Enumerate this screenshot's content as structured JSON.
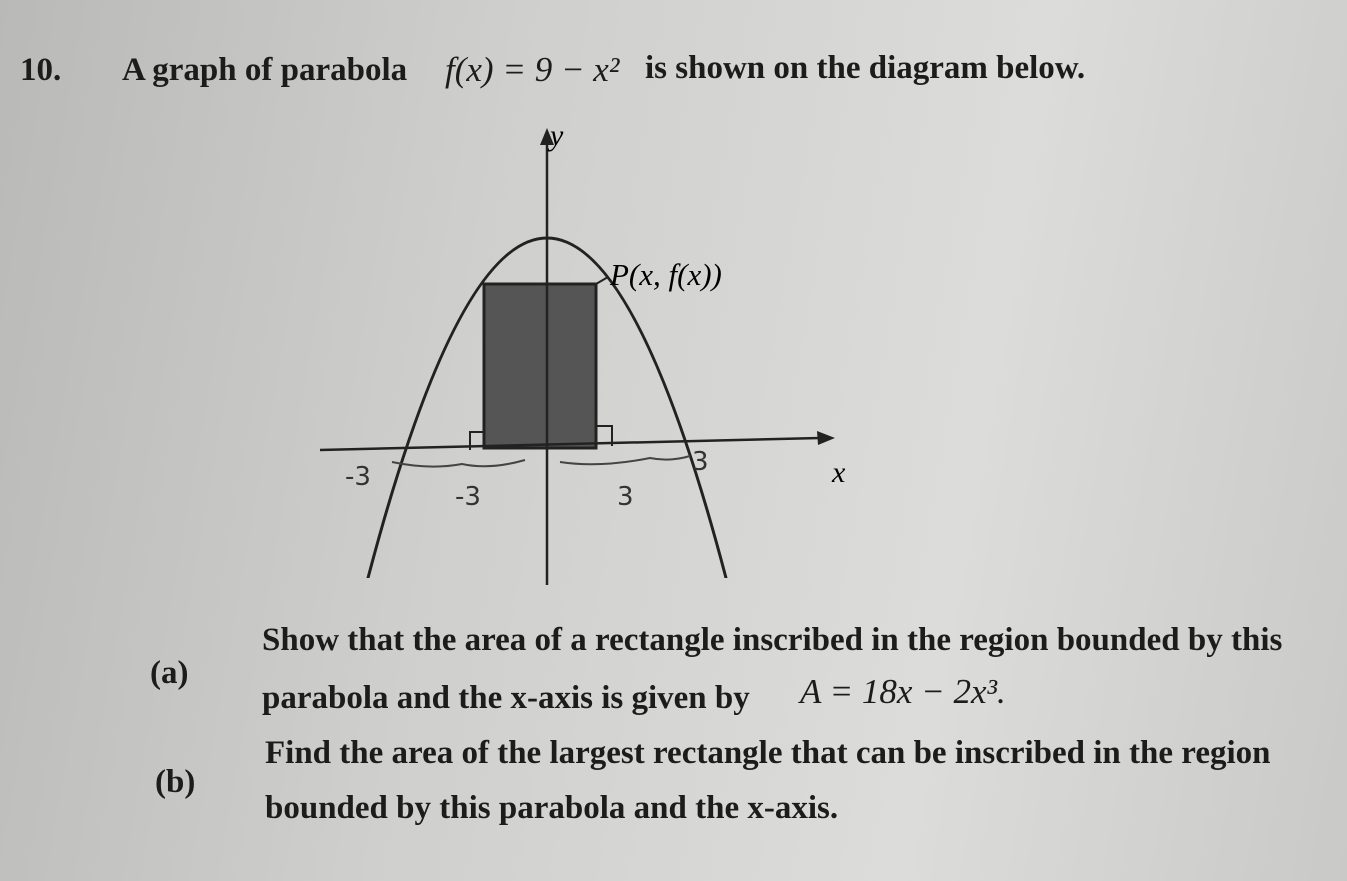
{
  "question": {
    "number": "10.",
    "intro_before": "A graph of parabola",
    "function": "f(x) = 9 − x²",
    "intro_after": "is shown on the diagram below."
  },
  "diagram": {
    "y_label": "y",
    "x_label": "x",
    "point_label": "P(x, f(x))",
    "handwritten": [
      "-3",
      "-3",
      "3",
      "3"
    ]
  },
  "parts": [
    {
      "label": "(a)",
      "lines": [
        "Show that the area of a rectangle inscribed in the region bounded by this",
        "parabola and the x-axis is given by"
      ],
      "formula": "A = 18x − 2x³."
    },
    {
      "label": "(b)",
      "lines": [
        "Find the area of the largest rectangle that can be inscribed in the region",
        "bounded by this parabola and the x-axis."
      ]
    }
  ]
}
